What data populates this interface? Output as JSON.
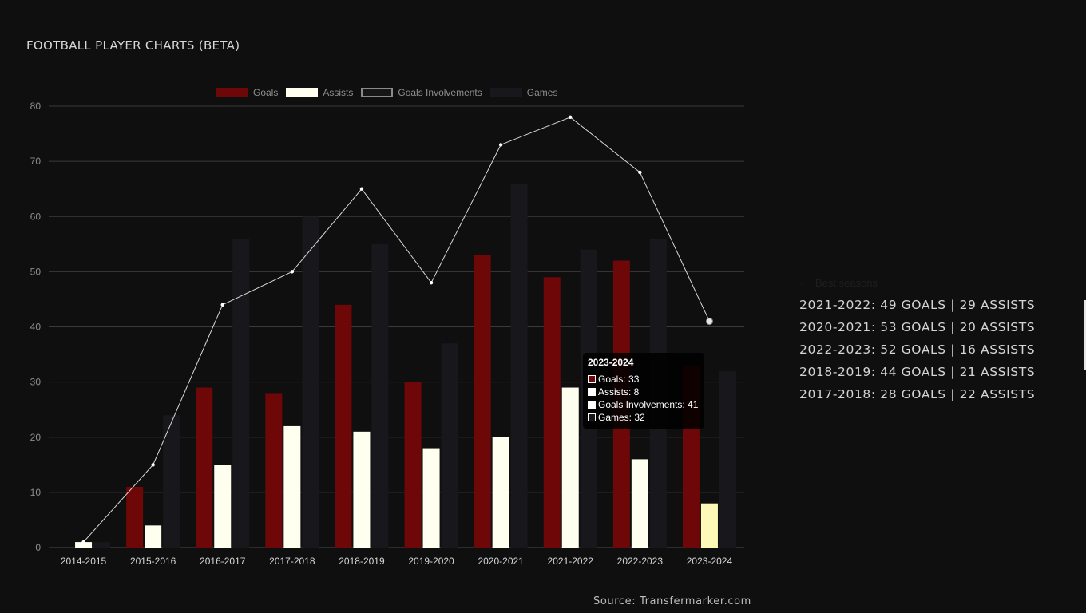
{
  "page": {
    "title": "FOOTBALL PLAYER CHARTS (BETA)",
    "source": "Source: Transfermarker.com"
  },
  "chart_data": {
    "type": "bar",
    "categories": [
      "2014-2015",
      "2015-2016",
      "2016-2017",
      "2017-2018",
      "2018-2019",
      "2019-2020",
      "2020-2021",
      "2021-2022",
      "2022-2023",
      "2023-2024"
    ],
    "series": [
      {
        "name": "Goals",
        "type": "bar",
        "color": "#6e0708",
        "values": [
          0,
          11,
          29,
          28,
          44,
          30,
          53,
          49,
          52,
          33
        ]
      },
      {
        "name": "Assists",
        "type": "bar",
        "color": "#fffff0",
        "values": [
          1,
          4,
          15,
          22,
          21,
          18,
          20,
          29,
          16,
          8
        ]
      },
      {
        "name": "Goals Involvements",
        "type": "line",
        "color": "#d9d9d9",
        "values": [
          1,
          15,
          44,
          50,
          65,
          48,
          73,
          78,
          68,
          41
        ]
      },
      {
        "name": "Games",
        "type": "bar",
        "color": "#18171b",
        "values": [
          1,
          24,
          56,
          60,
          55,
          37,
          66,
          54,
          56,
          32
        ]
      }
    ],
    "ylim": [
      0,
      80
    ],
    "yticks": [
      0,
      10,
      20,
      30,
      40,
      50,
      60,
      70,
      80
    ],
    "grid": true,
    "legend": "top"
  },
  "tooltip": {
    "title": "2023-2024",
    "rows": [
      {
        "label": "Goals: 33",
        "color": "#6e0708"
      },
      {
        "label": "Assists: 8",
        "color": "#ffffff"
      },
      {
        "label": "Goals Involvements: 41",
        "color": "#ffffff"
      },
      {
        "label": "Games: 32",
        "color": "#18171b"
      }
    ]
  },
  "best_seasons": {
    "heading": "Best seasons",
    "items": [
      "2021-2022: 49 GOALS | 29 ASSISTS",
      "2020-2021: 53 GOALS | 20 ASSISTS",
      "2022-2023: 52 GOALS | 16 ASSISTS",
      "2018-2019: 44 GOALS | 21 ASSISTS",
      "2017-2018: 28 GOALS | 22 ASSISTS"
    ]
  }
}
